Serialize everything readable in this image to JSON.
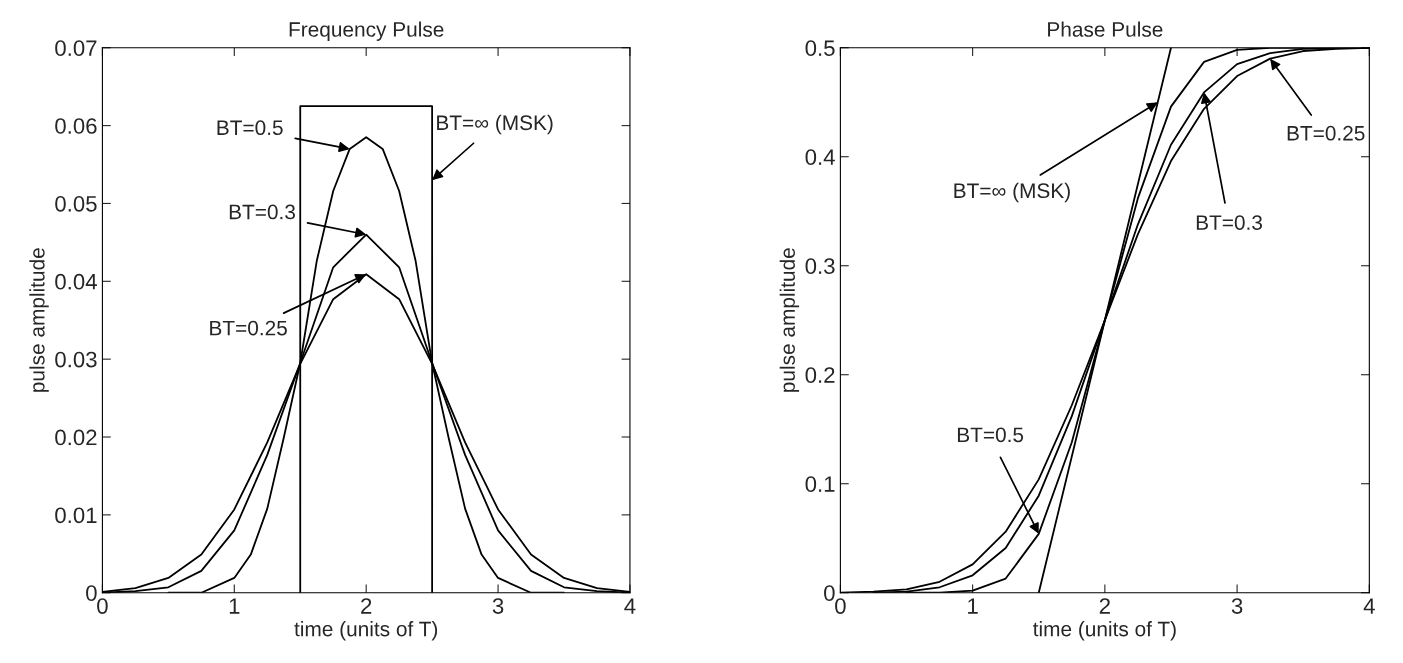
{
  "chart_data": [
    {
      "type": "line",
      "title": "Frequency Pulse",
      "xlabel": "time (units of T)",
      "ylabel": "pulse amplitude",
      "xlim": [
        0,
        4
      ],
      "ylim": [
        0,
        0.07
      ],
      "xticks": [
        0,
        1,
        2,
        3,
        4
      ],
      "yticks": [
        0,
        0.01,
        0.02,
        0.03,
        0.04,
        0.05,
        0.06,
        0.07
      ],
      "grid": false,
      "legend": false,
      "series": [
        {
          "color": "#000000",
          "x": [
            1.5,
            1.5,
            2.5,
            2.5
          ],
          "values": [
            0,
            0.0625,
            0.0625,
            0
          ]
        },
        {
          "color": "#000000",
          "x": [
            0.5,
            0.75,
            1,
            1.125,
            1.25,
            1.375,
            1.5,
            1.625,
            1.75,
            1.875,
            2,
            2.125,
            2.25,
            2.375,
            2.5,
            2.625,
            2.75,
            2.875,
            3,
            3.25,
            3.5
          ],
          "values": [
            0,
            0,
            0.0019,
            0.0049,
            0.0108,
            0.0199,
            0.0295,
            0.0426,
            0.0516,
            0.057,
            0.0585,
            0.057,
            0.0516,
            0.0426,
            0.0295,
            0.0199,
            0.0108,
            0.0049,
            0.0019,
            0,
            0
          ]
        },
        {
          "color": "#000000",
          "x": [
            0,
            0.25,
            0.5,
            0.75,
            1,
            1.25,
            1.5,
            1.75,
            2,
            2.25,
            2.5,
            2.75,
            3,
            3.25,
            3.5,
            3.75,
            4
          ],
          "values": [
            0,
            0.0002,
            0.0007,
            0.0028,
            0.008,
            0.0177,
            0.0295,
            0.0418,
            0.046,
            0.0418,
            0.0295,
            0.0177,
            0.008,
            0.0028,
            0.0007,
            0.0002,
            0
          ]
        },
        {
          "color": "#000000",
          "x": [
            0,
            0.25,
            0.5,
            0.75,
            1,
            1.25,
            1.5,
            1.75,
            2,
            2.25,
            2.5,
            2.75,
            3,
            3.25,
            3.5,
            3.75,
            4
          ],
          "values": [
            0.0001,
            0.0006,
            0.0019,
            0.0049,
            0.0107,
            0.0193,
            0.0294,
            0.0377,
            0.0409,
            0.0377,
            0.0294,
            0.0193,
            0.0107,
            0.0049,
            0.0019,
            0.0006,
            0.0001
          ]
        }
      ],
      "annotations": [
        {
          "text": "BT=∞ (MSK)",
          "x": 2.5,
          "y": 0.053
        },
        {
          "text": "BT=0.5",
          "x": 1.875,
          "y": 0.057
        },
        {
          "text": "BT=0.3",
          "x": 2.0,
          "y": 0.046
        },
        {
          "text": "BT=0.25",
          "x": 2.0,
          "y": 0.0409
        }
      ]
    },
    {
      "type": "line",
      "title": "Phase Pulse",
      "xlabel": "time (units of T)",
      "ylabel": "pulse amplitude",
      "xlim": [
        0,
        4
      ],
      "ylim": [
        0,
        0.5
      ],
      "xticks": [
        0,
        1,
        2,
        3,
        4
      ],
      "yticks": [
        0,
        0.1,
        0.2,
        0.3,
        0.4,
        0.5
      ],
      "grid": false,
      "legend": false,
      "series": [
        {
          "color": "#000000",
          "x": [
            1.5,
            2.5
          ],
          "values": [
            0,
            0.5
          ]
        },
        {
          "color": "#000000",
          "x": [
            0.5,
            0.75,
            1,
            1.25,
            1.5,
            1.75,
            2,
            2.25,
            2.5,
            2.75,
            3,
            3.25,
            3.5
          ],
          "values": [
            0,
            0,
            0.002,
            0.013,
            0.054,
            0.138,
            0.25,
            0.362,
            0.446,
            0.487,
            0.498,
            0.5,
            0.5
          ]
        },
        {
          "color": "#000000",
          "x": [
            0.25,
            0.5,
            0.75,
            1,
            1.25,
            1.5,
            1.75,
            2,
            2.25,
            2.5,
            2.75,
            3,
            3.25,
            3.5,
            3.75,
            4
          ],
          "values": [
            0,
            0.001,
            0.005,
            0.016,
            0.041,
            0.089,
            0.162,
            0.25,
            0.338,
            0.411,
            0.459,
            0.485,
            0.495,
            0.499,
            0.5,
            0.5
          ]
        },
        {
          "color": "#000000",
          "x": [
            0,
            0.25,
            0.5,
            0.75,
            1,
            1.25,
            1.5,
            1.75,
            2,
            2.25,
            2.5,
            2.75,
            3,
            3.25,
            3.5,
            3.75,
            4
          ],
          "values": [
            0,
            0.001,
            0.003,
            0.01,
            0.026,
            0.056,
            0.104,
            0.172,
            0.25,
            0.329,
            0.396,
            0.444,
            0.474,
            0.49,
            0.497,
            0.499,
            0.5
          ]
        }
      ],
      "annotations": [
        {
          "text": "BT=∞ (MSK)",
          "x": 2.4,
          "y": 0.45
        },
        {
          "text": "BT=0.5",
          "x": 1.5,
          "y": 0.054
        },
        {
          "text": "BT=0.3",
          "x": 2.75,
          "y": 0.459
        },
        {
          "text": "BT=0.25",
          "x": 3.25,
          "y": 0.49
        }
      ]
    }
  ]
}
